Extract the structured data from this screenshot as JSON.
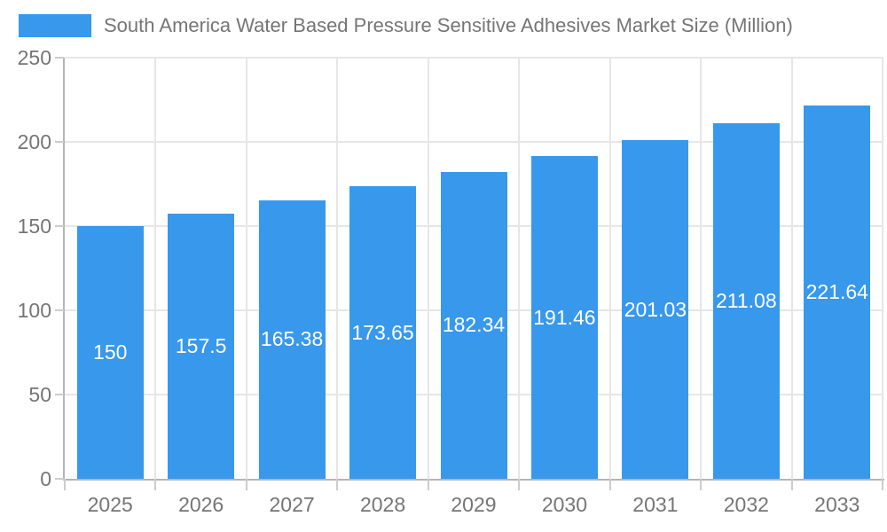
{
  "legend": {
    "label": "South America Water Based Pressure Sensitive Adhesives Market Size (Million)"
  },
  "chart_data": {
    "type": "bar",
    "title": "South America Water Based Pressure Sensitive Adhesives Market Size (Million)",
    "categories": [
      "2025",
      "2026",
      "2027",
      "2028",
      "2029",
      "2030",
      "2031",
      "2032",
      "2033"
    ],
    "values": [
      150,
      157.5,
      165.38,
      173.65,
      182.34,
      191.46,
      201.03,
      211.08,
      221.64
    ],
    "value_labels": [
      "150",
      "157.5",
      "165.38",
      "173.65",
      "182.34",
      "191.46",
      "201.03",
      "211.08",
      "221.64"
    ],
    "xlabel": "",
    "ylabel": "",
    "ylim": [
      0,
      250
    ],
    "yticks": [
      0,
      50,
      100,
      150,
      200,
      250
    ],
    "grid": true,
    "legend_position": "top-left",
    "colors": {
      "bar": "#3898ec",
      "value_label": "#ffffff",
      "axis_label": "#757575",
      "title": "#757575",
      "grid": "#e6e6e6",
      "axis": "#b5b5b5",
      "tick": "#cccccc"
    }
  }
}
